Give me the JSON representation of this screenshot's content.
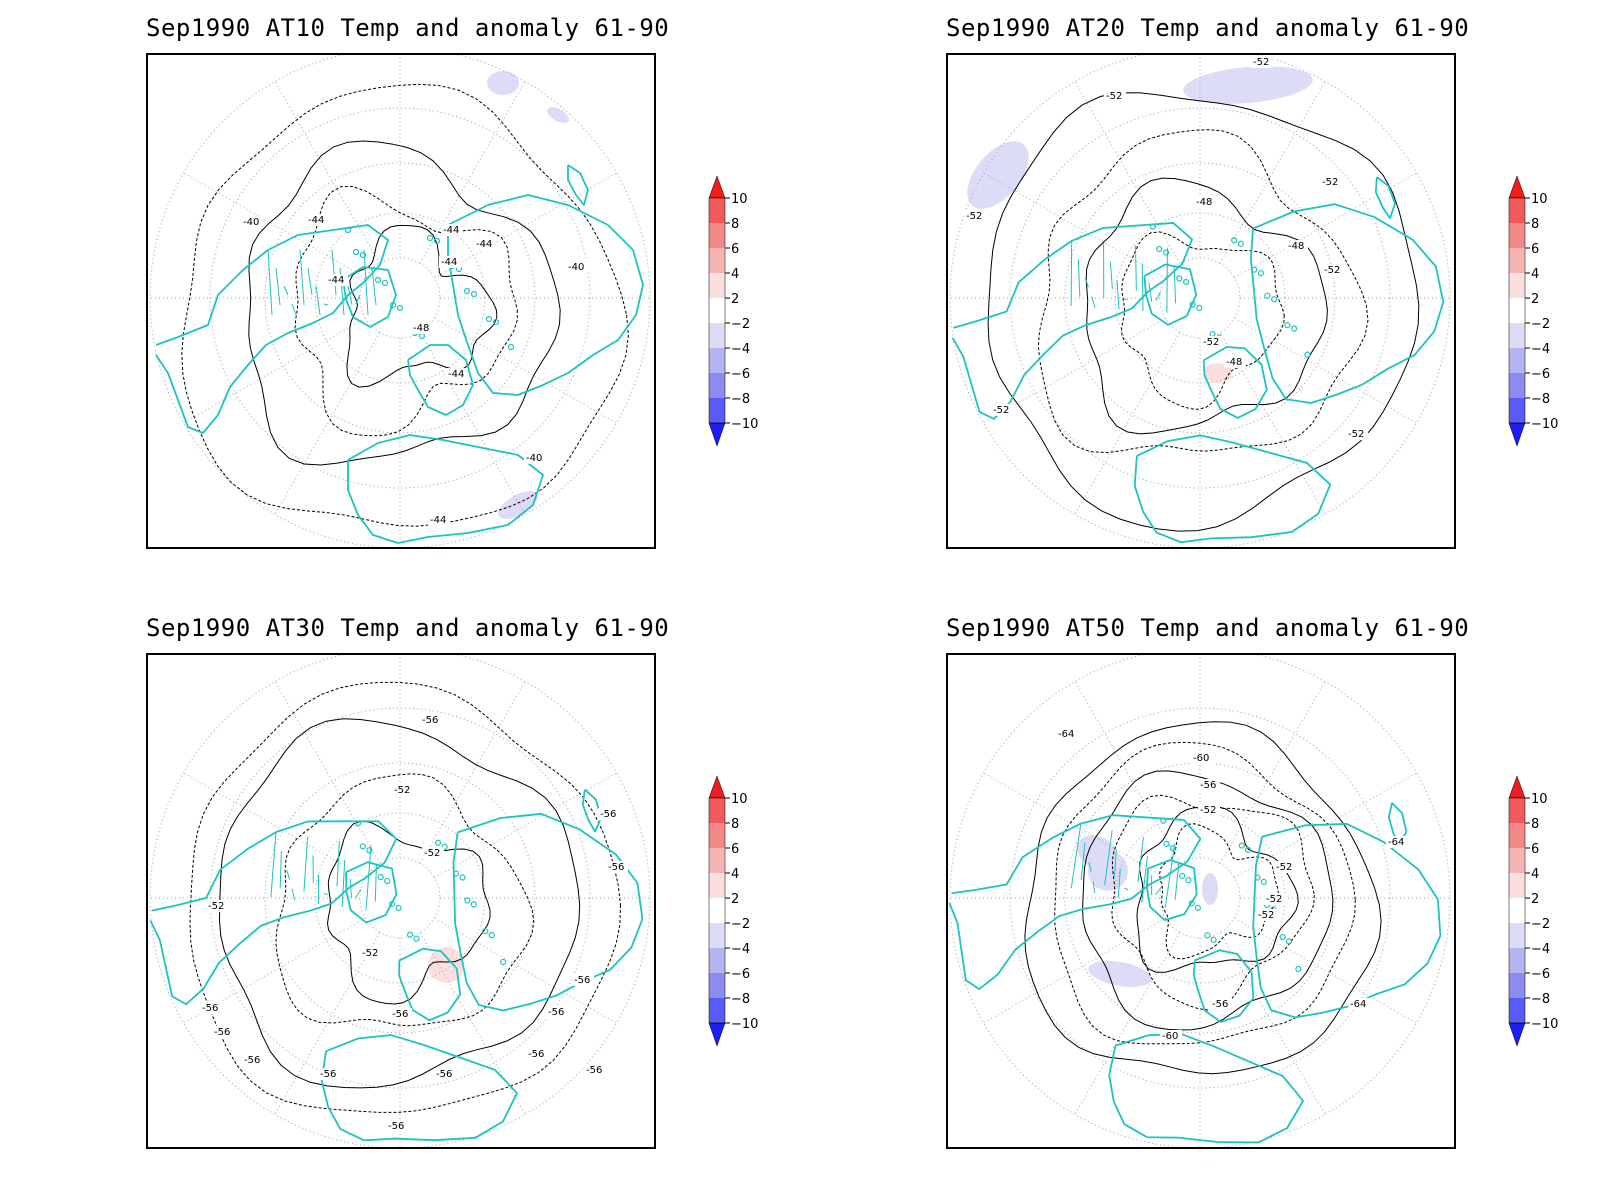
{
  "colors": {
    "coast": "#1ec2c2",
    "grid": "#a0a0a0",
    "contour": "#000000",
    "anom_neg_1": "#dcdcf6",
    "anom_neg_2": "#b4b4f0",
    "anom_neg_3": "#8c8cf0",
    "anom_neg_4": "#5a5af5",
    "anom_neg_5": "#1e1ef5",
    "anom_pos_1": "#fbdede",
    "anom_pos_2": "#f6b4b4",
    "anom_pos_3": "#f28a8a",
    "anom_pos_4": "#f05a5a",
    "anom_pos_5": "#f01e1e"
  },
  "colorbar": {
    "labels": [
      "10",
      "8",
      "6",
      "4",
      "2",
      "−2",
      "−4",
      "−6",
      "−8",
      "−10"
    ]
  },
  "panels": [
    {
      "title": "Sep1990 AT10 Temp and anomaly 61-90",
      "contour_labels": [
        "-40",
        "-44",
        "-44",
        "-44",
        "-44",
        "-44",
        "-48",
        "-44",
        "-40",
        "-40",
        "-44"
      ],
      "anomaly_patches": [
        "negative",
        "negative",
        "negative"
      ]
    },
    {
      "title": "Sep1990 AT20 Temp and anomaly 61-90",
      "contour_labels": [
        "-52",
        "-52",
        "-52",
        "-48",
        "-52",
        "-52",
        "-48",
        "-52",
        "-48",
        "-52",
        "-52"
      ],
      "anomaly_patches": [
        "negative",
        "negative",
        "positive"
      ]
    },
    {
      "title": "Sep1990 AT30 Temp and anomaly 61-90",
      "contour_labels": [
        "-56",
        "-52",
        "-56",
        "-56",
        "-52",
        "-52",
        "-56",
        "-52",
        "-56",
        "-56",
        "-56",
        "-56",
        "-56",
        "-56",
        "-56",
        "-56",
        "-56",
        "-56"
      ],
      "anomaly_patches": [
        "positive"
      ]
    },
    {
      "title": "Sep1990 AT50 Temp and anomaly 61-90",
      "contour_labels": [
        "-64",
        "-60",
        "-56",
        "-52",
        "-64",
        "-52",
        "-52",
        "-52",
        "-56",
        "-64",
        "-60"
      ],
      "anomaly_patches": [
        "negative",
        "negative",
        "negative",
        "negative"
      ]
    }
  ]
}
